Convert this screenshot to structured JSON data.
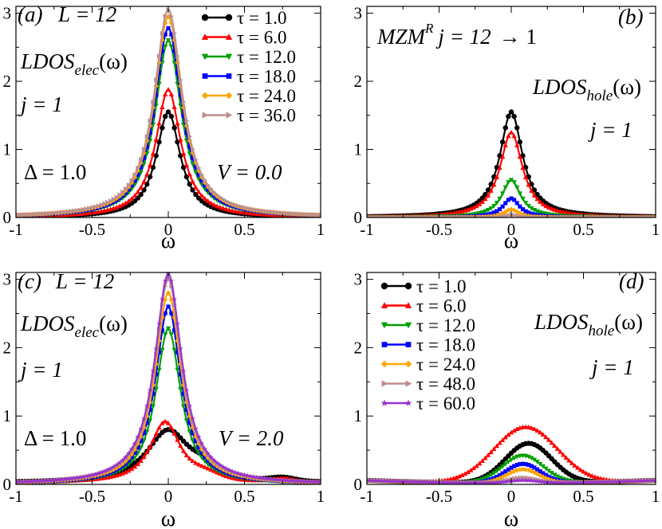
{
  "chart_data": [
    {
      "id": "a",
      "type": "line",
      "panel_label": "(a)",
      "xlabel": "ω",
      "ylabel": "",
      "xlim": [
        -1,
        1
      ],
      "ylim": [
        0,
        3.1
      ],
      "xticks": [
        -1,
        -0.5,
        0,
        0.5,
        1
      ],
      "xtick_labels": [
        "-1",
        "-0.5",
        "0",
        "0.5",
        "1"
      ],
      "yticks": [
        0,
        1,
        2,
        3
      ],
      "ytick_labels": [
        "0",
        "1",
        "2",
        "3"
      ],
      "legend_position": "top-right",
      "annotations": [
        "L = 12",
        "LDOS_elec(ω)",
        "j = 1",
        "Δ = 1.0",
        "V = 0.0"
      ],
      "series": [
        {
          "name": "τ = 1.0",
          "color": "#000000",
          "marker": "circle",
          "shape": "lorentz",
          "peak": 1.55,
          "center": 0.0,
          "width": 0.095,
          "skew": 0
        },
        {
          "name": "τ = 6.0",
          "color": "#ff0000",
          "marker": "triangle-up",
          "shape": "lorentz",
          "peak": 1.88,
          "center": 0.0,
          "width": 0.1,
          "skew": 0
        },
        {
          "name": "τ = 12.0",
          "color": "#00a000",
          "marker": "triangle-down",
          "shape": "lorentz",
          "peak": 2.6,
          "center": 0.0,
          "width": 0.105,
          "skew": 0
        },
        {
          "name": "τ = 18.0",
          "color": "#0000ff",
          "marker": "square",
          "shape": "lorentz",
          "peak": 2.78,
          "center": 0.0,
          "width": 0.108,
          "skew": 0
        },
        {
          "name": "τ = 24.0",
          "color": "#ffa500",
          "marker": "diamond",
          "shape": "lorentz",
          "peak": 2.95,
          "center": 0.0,
          "width": 0.11,
          "skew": 0
        },
        {
          "name": "τ = 36.0",
          "color": "#bc8f8f",
          "marker": "triangle-right",
          "shape": "lorentz",
          "peak": 3.05,
          "center": 0.0,
          "width": 0.112,
          "skew": 0
        }
      ]
    },
    {
      "id": "b",
      "type": "line",
      "panel_label": "(b)",
      "xlabel": "ω",
      "ylabel": "",
      "xlim": [
        -1,
        1
      ],
      "ylim": [
        0,
        3.1
      ],
      "xticks": [
        -1,
        -0.5,
        0,
        0.5,
        1
      ],
      "xtick_labels": [
        "-1",
        "-0.5",
        "0",
        "0.5",
        "1"
      ],
      "yticks": [
        0,
        1,
        2,
        3
      ],
      "ytick_labels": [
        "0",
        "1",
        "2",
        "3"
      ],
      "legend_position": "none",
      "annotations": [
        "MZM^R j = 12 → 1",
        "LDOS_hole(ω)",
        "j = 1"
      ],
      "series": [
        {
          "name": "τ = 1.0",
          "color": "#000000",
          "marker": "circle",
          "shape": "lorentz",
          "peak": 1.55,
          "center": 0.0,
          "width": 0.095,
          "skew": 0
        },
        {
          "name": "τ = 6.0",
          "color": "#ff0000",
          "marker": "triangle-up",
          "shape": "lorentz",
          "peak": 1.25,
          "center": 0.0,
          "width": 0.095,
          "skew": 0
        },
        {
          "name": "τ = 12.0",
          "color": "#00a000",
          "marker": "triangle-down",
          "shape": "lorentz",
          "peak": 0.55,
          "center": 0.0,
          "width": 0.08,
          "skew": 0
        },
        {
          "name": "τ = 18.0",
          "color": "#0000ff",
          "marker": "square",
          "shape": "lorentz",
          "peak": 0.28,
          "center": 0.0,
          "width": 0.07,
          "skew": 0
        },
        {
          "name": "τ = 24.0",
          "color": "#ffa500",
          "marker": "diamond",
          "shape": "lorentz",
          "peak": 0.12,
          "center": 0.0,
          "width": 0.06,
          "skew": 0
        },
        {
          "name": "τ = 36.0",
          "color": "#bc8f8f",
          "marker": "triangle-right",
          "shape": "lorentz",
          "peak": 0.04,
          "center": 0.0,
          "width": 0.05,
          "skew": 0
        }
      ]
    },
    {
      "id": "c",
      "type": "line",
      "panel_label": "(c)",
      "xlabel": "ω",
      "ylabel": "",
      "xlim": [
        -1,
        1
      ],
      "ylim": [
        0,
        3.1
      ],
      "xticks": [
        -1,
        -0.5,
        0,
        0.5,
        1
      ],
      "xtick_labels": [
        "-1",
        "-0.5",
        "0",
        "0.5",
        "1"
      ],
      "yticks": [
        0,
        1,
        2,
        3
      ],
      "ytick_labels": [
        "0",
        "1",
        "2",
        "3"
      ],
      "legend_position": "none",
      "annotations": [
        "L = 12",
        "LDOS_elec(ω)",
        "j = 1",
        "Δ = 1.0",
        "V = 2.0"
      ],
      "series": [
        {
          "name": "τ = 1.0",
          "color": "#000000",
          "marker": "circle",
          "shape": "broad",
          "peak": 0.78,
          "center": 0.0,
          "width": 0.17,
          "skew": 0.35
        },
        {
          "name": "τ = 6.0",
          "color": "#ff0000",
          "marker": "triangle-up",
          "shape": "broad",
          "peak": 0.9,
          "center": -0.02,
          "width": 0.12,
          "skew": 0.2
        },
        {
          "name": "τ = 12.0",
          "color": "#00a000",
          "marker": "triangle-down",
          "shape": "lorentz",
          "peak": 2.28,
          "center": 0.0,
          "width": 0.1,
          "skew": 0
        },
        {
          "name": "τ = 18.0",
          "color": "#0000ff",
          "marker": "square",
          "shape": "lorentz",
          "peak": 2.6,
          "center": 0.0,
          "width": 0.102,
          "skew": 0
        },
        {
          "name": "τ = 24.0",
          "color": "#ffa500",
          "marker": "diamond",
          "shape": "lorentz",
          "peak": 2.8,
          "center": 0.0,
          "width": 0.104,
          "skew": 0
        },
        {
          "name": "τ = 48.0",
          "color": "#bc8f8f",
          "marker": "triangle-right",
          "shape": "lorentz",
          "peak": 3.0,
          "center": 0.0,
          "width": 0.106,
          "skew": 0
        },
        {
          "name": "τ = 60.0",
          "color": "#9932cc",
          "marker": "star",
          "shape": "lorentz",
          "peak": 3.08,
          "center": 0.0,
          "width": 0.108,
          "skew": 0
        }
      ]
    },
    {
      "id": "d",
      "type": "line",
      "panel_label": "(d)",
      "xlabel": "ω",
      "ylabel": "",
      "xlim": [
        -1,
        1
      ],
      "ylim": [
        0,
        3.1
      ],
      "xticks": [
        -1,
        -0.5,
        0,
        0.5,
        1
      ],
      "xtick_labels": [
        "-1",
        "-0.5",
        "0",
        "0.5",
        "1"
      ],
      "yticks": [
        0,
        1,
        2,
        3
      ],
      "ytick_labels": [
        "0",
        "1",
        "2",
        "3"
      ],
      "legend_position": "top-left",
      "annotations": [
        "LDOS_hole(ω)",
        "j = 1"
      ],
      "series": [
        {
          "name": "τ = 1.0",
          "color": "#000000",
          "marker": "circle",
          "shape": "gauss",
          "peak": 0.58,
          "center": 0.12,
          "width": 0.16,
          "skew": 0
        },
        {
          "name": "τ = 6.0",
          "color": "#ff0000",
          "marker": "triangle-up",
          "shape": "gauss",
          "peak": 0.82,
          "center": 0.1,
          "width": 0.22,
          "skew": 0
        },
        {
          "name": "τ = 12.0",
          "color": "#00a000",
          "marker": "triangle-down",
          "shape": "gauss",
          "peak": 0.4,
          "center": 0.08,
          "width": 0.14,
          "skew": 0
        },
        {
          "name": "τ = 18.0",
          "color": "#0000ff",
          "marker": "square",
          "shape": "gauss",
          "peak": 0.28,
          "center": 0.08,
          "width": 0.12,
          "skew": 0
        },
        {
          "name": "τ = 24.0",
          "color": "#ffa500",
          "marker": "diamond",
          "shape": "gauss",
          "peak": 0.2,
          "center": 0.08,
          "width": 0.11,
          "skew": 0
        },
        {
          "name": "τ = 48.0",
          "color": "#bc8f8f",
          "marker": "triangle-right",
          "shape": "gauss",
          "peak": 0.08,
          "center": 0.08,
          "width": 0.1,
          "skew": 0
        },
        {
          "name": "τ = 60.0",
          "color": "#9932cc",
          "marker": "star",
          "shape": "gauss",
          "peak": 0.04,
          "center": 0.08,
          "width": 0.1,
          "skew": 0
        }
      ]
    }
  ],
  "labels": {
    "a": {
      "panel": "(a)",
      "l": "L = 12",
      "ldos_main": "LDOS",
      "ldos_sub": "elec",
      "ldos_tail": "(ω)",
      "j": "j = 1",
      "delta": "Δ = 1.0",
      "v": "V = 0.0"
    },
    "b": {
      "panel": "(b)",
      "mzm": "MZM",
      "mzm_sup": "R",
      "mzm_tail": "j = 12",
      "arrow": "→ 1",
      "ldos_main": "LDOS",
      "ldos_sub": "hole",
      "ldos_tail": "(ω)",
      "j": "j = 1"
    },
    "c": {
      "panel": "(c)",
      "l": "L = 12",
      "ldos_main": "LDOS",
      "ldos_sub": "elec",
      "ldos_tail": "(ω)",
      "j": "j = 1",
      "delta": "Δ = 1.0",
      "v": "V = 2.0"
    },
    "d": {
      "panel": "(d)",
      "ldos_main": "LDOS",
      "ldos_sub": "hole",
      "ldos_tail": "(ω)",
      "j": "j = 1"
    }
  }
}
